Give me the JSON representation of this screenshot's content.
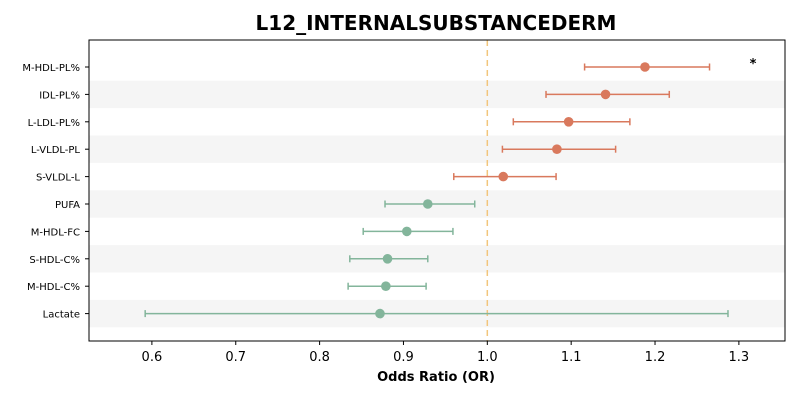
{
  "chart_data": {
    "type": "forest",
    "title": "L12_INTERNALSUBSTANCEDERM",
    "xlabel": "Odds Ratio (OR)",
    "ylabel": "",
    "xlim": [
      0.525,
      1.355
    ],
    "x_ticks": [
      "0.6",
      "0.7",
      "0.8",
      "0.9",
      "1.0",
      "1.1",
      "1.2",
      "1.3"
    ],
    "reference_line": 1.0,
    "grid": false,
    "alternating_row_shading": true,
    "colors": {
      "positive": "#d9795d",
      "negative": "#83b59b",
      "reference_line": "#f2c57c",
      "row_shade": "#f5f5f5"
    },
    "rows": [
      {
        "label": "M-HDL-PL%",
        "or": 1.188,
        "ci_low": 1.116,
        "ci_high": 1.265,
        "group": "positive",
        "annotation": "*"
      },
      {
        "label": "IDL-PL%",
        "or": 1.141,
        "ci_low": 1.07,
        "ci_high": 1.217,
        "group": "positive",
        "annotation": ""
      },
      {
        "label": "L-LDL-PL%",
        "or": 1.097,
        "ci_low": 1.031,
        "ci_high": 1.17,
        "group": "positive",
        "annotation": ""
      },
      {
        "label": "L-VLDL-PL",
        "or": 1.083,
        "ci_low": 1.018,
        "ci_high": 1.153,
        "group": "positive",
        "annotation": ""
      },
      {
        "label": "S-VLDL-L",
        "or": 1.019,
        "ci_low": 0.96,
        "ci_high": 1.082,
        "group": "positive",
        "annotation": ""
      },
      {
        "label": "PUFA",
        "or": 0.929,
        "ci_low": 0.878,
        "ci_high": 0.985,
        "group": "negative",
        "annotation": ""
      },
      {
        "label": "M-HDL-FC",
        "or": 0.904,
        "ci_low": 0.852,
        "ci_high": 0.959,
        "group": "negative",
        "annotation": ""
      },
      {
        "label": "S-HDL-C%",
        "or": 0.881,
        "ci_low": 0.836,
        "ci_high": 0.929,
        "group": "negative",
        "annotation": ""
      },
      {
        "label": "M-HDL-C%",
        "or": 0.879,
        "ci_low": 0.834,
        "ci_high": 0.927,
        "group": "negative",
        "annotation": ""
      },
      {
        "label": "Lactate",
        "or": 0.872,
        "ci_low": 0.592,
        "ci_high": 1.287,
        "group": "negative",
        "annotation": ""
      }
    ]
  }
}
